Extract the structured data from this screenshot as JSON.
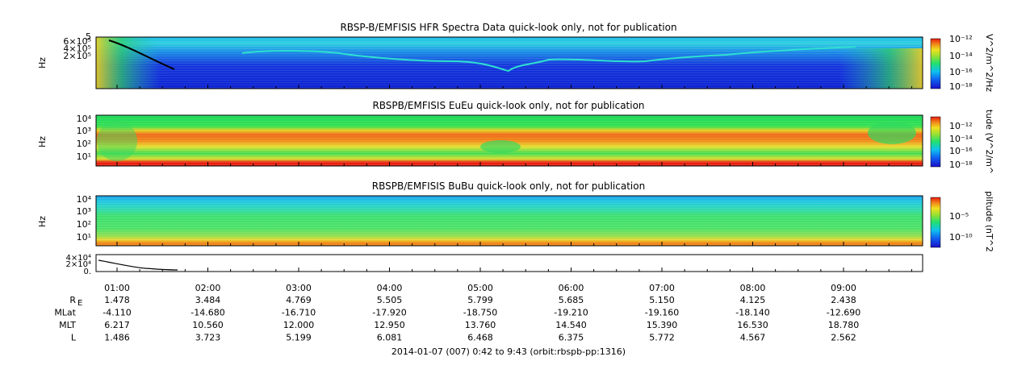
{
  "colors": {
    "spec_lo": "#0a1fd8",
    "spec_mid": "#15e070",
    "spec_hi": "#f2d21a",
    "spec_max": "#e81b10",
    "curve": "#000000"
  },
  "panels": [
    {
      "title": "RBSP-B/EMFISIS  HFR Spectra Data quick-look only, not for publication",
      "ylabel": "Hz",
      "yticks": [
        "6×10⁵",
        "4×10⁵",
        "2×10⁵"
      ],
      "ytick_top": "5",
      "colorbar_label": "V^2/m^2/Hz",
      "colorbar_ticks": [
        "10⁻¹²",
        "10⁻¹⁴",
        "10⁻¹⁶",
        "10⁻¹⁸"
      ]
    },
    {
      "title": "RBSPB/EMFISIS  EuEu quick-look only, not for publication",
      "ylabel": "Hz",
      "yticks": [
        "10⁴",
        "10³",
        "10²",
        "10¹"
      ],
      "colorbar_label": "tude (V^2/m^",
      "colorbar_ticks": [
        "10⁻¹²",
        "10⁻¹⁴",
        "10⁻¹⁶",
        "10⁻¹⁸"
      ]
    },
    {
      "title": "RBSPB/EMFISIS  BuBu quick-look only, not for publication",
      "ylabel": "Hz",
      "yticks": [
        "10⁴",
        "10³",
        "10²",
        "10¹"
      ],
      "colorbar_label": "plitude (nT^2",
      "colorbar_ticks": [
        "10⁻⁵",
        "10⁻¹⁰"
      ]
    },
    {
      "yticks": [
        "4×10⁴",
        "2×10⁴",
        "0."
      ]
    }
  ],
  "chart_data": {
    "type": "heatmap",
    "x_ticks": [
      "01:00",
      "02:00",
      "03:00",
      "04:00",
      "05:00",
      "06:00",
      "07:00",
      "08:00",
      "09:00"
    ],
    "ephemeris": [
      {
        "label": "R",
        "sub": "E",
        "values": [
          "1.478",
          "3.484",
          "4.769",
          "5.505",
          "5.799",
          "5.685",
          "5.150",
          "4.125",
          "2.438"
        ]
      },
      {
        "label": "MLat",
        "values": [
          "-4.110",
          "-14.680",
          "-16.710",
          "-17.920",
          "-18.750",
          "-19.210",
          "-19.160",
          "-18.140",
          "-12.690"
        ]
      },
      {
        "label": "MLT",
        "values": [
          "6.217",
          "10.560",
          "12.000",
          "12.950",
          "13.760",
          "14.540",
          "15.390",
          "16.530",
          "18.780"
        ]
      },
      {
        "label": "L",
        "values": [
          "1.486",
          "3.723",
          "5.199",
          "6.081",
          "6.468",
          "6.375",
          "5.772",
          "4.567",
          "2.562"
        ]
      }
    ],
    "footer": "2014-01-07 (007) 0:42 to 9:43 (orbit:rbspb-pp:1316)"
  }
}
